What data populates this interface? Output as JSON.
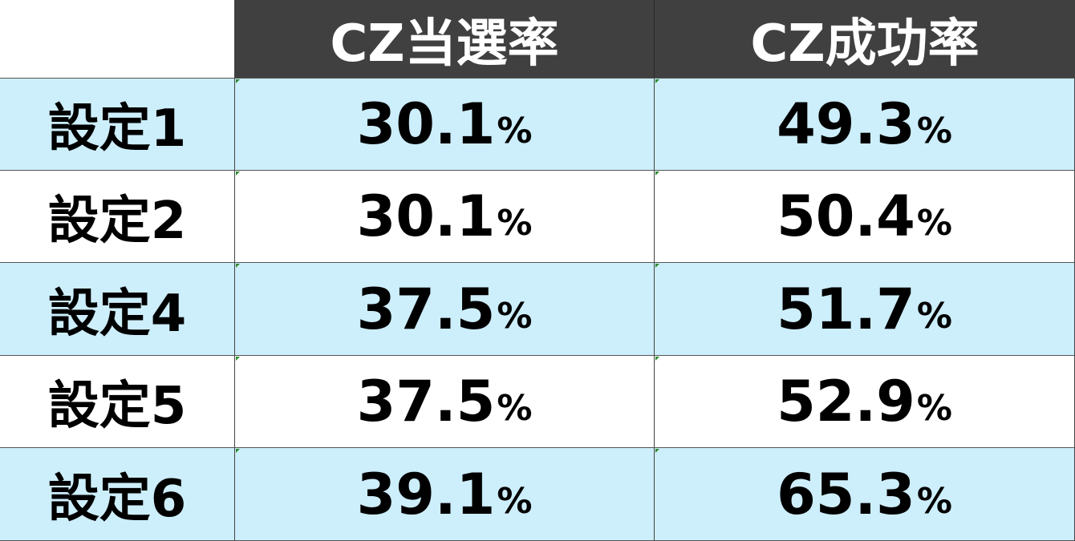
{
  "table": {
    "headers": [
      "CZ当選率",
      "CZ成功率"
    ],
    "rows": [
      {
        "label": "設定1",
        "values": [
          "30.1",
          "49.3"
        ],
        "shade": "blue"
      },
      {
        "label": "設定2",
        "values": [
          "30.1",
          "50.4"
        ],
        "shade": "white"
      },
      {
        "label": "設定4",
        "values": [
          "37.5",
          "51.7"
        ],
        "shade": "blue"
      },
      {
        "label": "設定5",
        "values": [
          "37.5",
          "52.9"
        ],
        "shade": "white"
      },
      {
        "label": "設定6",
        "values": [
          "39.1",
          "65.3"
        ],
        "shade": "blue"
      }
    ],
    "unit": "%"
  },
  "colors": {
    "header_bg": "#404040",
    "header_text": "#ffffff",
    "row_blue": "#cdeefb",
    "row_white": "#ffffff"
  }
}
